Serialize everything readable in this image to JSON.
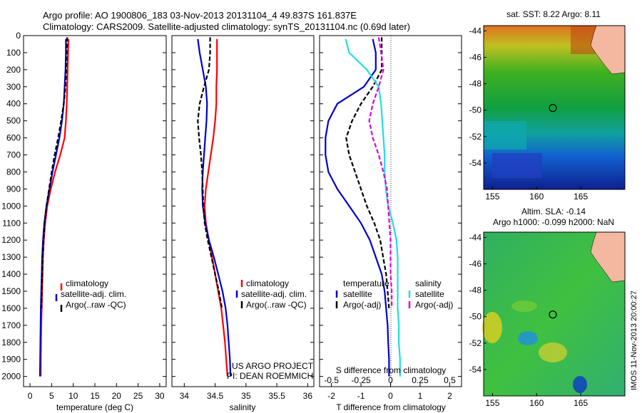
{
  "header": {
    "title_line1": "Argo profile: AO 1900806_183 03-Nov-2013 20131104_4 49.837S 161.837E",
    "title_line2": "Climatology: CARS2009. Satellite-adjusted climatology: synTS_20131104.nc (0.69d later)"
  },
  "colors": {
    "climatology": "#ff0000",
    "satellite": "#0000cc",
    "argo": "#000000",
    "salinity_satellite": "#22dddd",
    "salinity_argo": "#dd00dd"
  },
  "depth_axis": {
    "ticks": [
      "0",
      "100",
      "200",
      "300",
      "400",
      "500",
      "600",
      "700",
      "800",
      "900",
      "1000",
      "1100",
      "1200",
      "1300",
      "1400",
      "1500",
      "1600",
      "1700",
      "1800",
      "1900",
      "2000"
    ],
    "range": [
      0,
      2060
    ]
  },
  "chart_data": [
    {
      "type": "line",
      "id": "temperature",
      "xlabel": "temperature (deg C)",
      "xlim": [
        -1.5,
        31.5
      ],
      "xticks": [
        "0",
        "5",
        "10",
        "15",
        "20",
        "25",
        "30"
      ],
      "xtick_values": [
        0,
        5,
        10,
        15,
        20,
        25,
        30
      ],
      "legend": [
        "climatology",
        "satellite-adj. clim.",
        "Argo(..raw -QC)"
      ],
      "series": [
        {
          "name": "climatology",
          "color": "#ff0000",
          "dash": "",
          "x": [
            8.9,
            8.8,
            8.7,
            8.6,
            8.5,
            8.3,
            8.0,
            7.0,
            5.8,
            4.8,
            4.0,
            3.5,
            3.2,
            3.0,
            2.9,
            2.8,
            2.7,
            2.6,
            2.55,
            2.5,
            2.5
          ],
          "y": [
            20,
            100,
            200,
            300,
            400,
            500,
            600,
            700,
            800,
            900,
            1000,
            1100,
            1200,
            1300,
            1400,
            1500,
            1600,
            1700,
            1800,
            1900,
            2000
          ]
        },
        {
          "name": "satellite-adj. clim.",
          "color": "#0000cc",
          "dash": "",
          "x": [
            8.3,
            8.3,
            8.2,
            8.0,
            7.8,
            7.4,
            6.8,
            6.0,
            5.2,
            4.5,
            3.8,
            3.3,
            3.0,
            2.8,
            2.7,
            2.6,
            2.5,
            2.45,
            2.4,
            2.35,
            2.3
          ],
          "y": [
            20,
            100,
            200,
            300,
            400,
            500,
            600,
            700,
            800,
            900,
            1000,
            1100,
            1200,
            1300,
            1400,
            1500,
            1600,
            1700,
            1800,
            1900,
            2000
          ]
        },
        {
          "name": "Argo(..raw -QC)",
          "color": "#000000",
          "dash": "6,3",
          "x": [
            8.6,
            8.5,
            8.4,
            8.2,
            7.8,
            7.2,
            6.5,
            5.7,
            5.0,
            4.4,
            3.8,
            3.4,
            3.1,
            2.9,
            2.8,
            2.7,
            2.65
          ],
          "y": [
            10,
            100,
            200,
            300,
            400,
            500,
            600,
            700,
            800,
            900,
            1000,
            1100,
            1200,
            1300,
            1400,
            1500,
            1600
          ]
        }
      ]
    },
    {
      "type": "line",
      "id": "salinity",
      "xlabel": "salinity",
      "xlim": [
        33.8,
        36.1
      ],
      "xticks": [
        "34",
        "34.5",
        "35",
        "35.5",
        "36"
      ],
      "xtick_values": [
        34,
        34.5,
        35,
        35.5,
        36
      ],
      "legend": [
        "climatology",
        "satellite-adj. clim.",
        "Argo(..raw -QC)"
      ],
      "series": [
        {
          "name": "climatology",
          "color": "#ff0000",
          "dash": "",
          "x": [
            34.53,
            34.53,
            34.53,
            34.52,
            34.52,
            34.5,
            34.47,
            34.43,
            34.39,
            34.35,
            34.33,
            34.35,
            34.4,
            34.45,
            34.5,
            34.55,
            34.6,
            34.63,
            34.66,
            34.68,
            34.7
          ],
          "y": [
            20,
            100,
            200,
            300,
            400,
            500,
            600,
            700,
            800,
            900,
            1000,
            1100,
            1200,
            1300,
            1400,
            1500,
            1600,
            1700,
            1800,
            1900,
            2000
          ]
        },
        {
          "name": "satellite-adj. clim.",
          "color": "#0000cc",
          "dash": "",
          "x": [
            34.22,
            34.25,
            34.3,
            34.35,
            34.37,
            34.36,
            34.34,
            34.32,
            34.3,
            34.29,
            34.3,
            34.34,
            34.4,
            34.48,
            34.55,
            34.62,
            34.67,
            34.7,
            34.72,
            34.74,
            34.75
          ],
          "y": [
            20,
            100,
            200,
            300,
            400,
            500,
            600,
            700,
            800,
            900,
            1000,
            1100,
            1200,
            1300,
            1400,
            1500,
            1600,
            1700,
            1800,
            1900,
            2000
          ]
        },
        {
          "name": "Argo(..raw -QC)",
          "color": "#000000",
          "dash": "6,3",
          "x": [
            34.42,
            34.42,
            34.4,
            34.32,
            34.25,
            34.22,
            34.24,
            34.27,
            34.29,
            34.3,
            34.31,
            34.33,
            34.38,
            34.44,
            34.5,
            34.56,
            34.61
          ],
          "y": [
            10,
            100,
            200,
            300,
            400,
            500,
            600,
            700,
            800,
            900,
            1000,
            1100,
            1200,
            1300,
            1400,
            1500,
            1600
          ]
        }
      ],
      "annotations": [
        "US ARGO PROJECT",
        "PI: DEAN ROEMMICH"
      ]
    },
    {
      "type": "line",
      "id": "difference",
      "xlabel": "T difference from climatology",
      "xlim": [
        -2.4,
        2.4
      ],
      "xticks": [
        "-2",
        "-1",
        "0",
        "1",
        "2"
      ],
      "xtick_values": [
        -2,
        -1,
        0,
        1,
        2
      ],
      "secondary_label": "S difference from climatology",
      "secondary_ticks": [
        "-0.5",
        "-0.25",
        "0",
        "0.25",
        "0.5"
      ],
      "secondary_tick_values": [
        -0.5,
        -0.25,
        0,
        0.25,
        0.5
      ],
      "legend_temperature": {
        "title": "temperature",
        "items": [
          "satellite",
          "Argo(-adj)"
        ]
      },
      "legend_salinity": {
        "title": "salinity",
        "items": [
          "satellite",
          "Argo(-adj)"
        ]
      },
      "series": [
        {
          "name": "temperature satellite",
          "color": "#0000cc",
          "dash": "",
          "x": [
            -0.6,
            -0.5,
            -0.5,
            -0.9,
            -1.8,
            -2.1,
            -2.2,
            -2.2,
            -2.1,
            -1.8,
            -1.4,
            -1.0,
            -0.7,
            -0.5,
            -0.3,
            -0.2,
            -0.15,
            -0.1,
            -0.08,
            -0.05,
            -0.05
          ],
          "y": [
            20,
            100,
            200,
            300,
            400,
            500,
            600,
            700,
            800,
            900,
            1000,
            1100,
            1200,
            1300,
            1400,
            1500,
            1600,
            1700,
            1800,
            1900,
            2000
          ]
        },
        {
          "name": "temperature Argo(-adj)",
          "color": "#000000",
          "dash": "6,3",
          "x": [
            -0.3,
            -0.3,
            -0.3,
            -0.6,
            -1.0,
            -1.3,
            -1.5,
            -1.4,
            -1.2,
            -1.0,
            -0.8,
            -0.55,
            -0.35,
            -0.25,
            -0.15,
            -0.1,
            -0.05
          ],
          "y": [
            10,
            100,
            200,
            300,
            400,
            500,
            600,
            700,
            800,
            900,
            1000,
            1100,
            1200,
            1300,
            1400,
            1500,
            1600
          ]
        },
        {
          "name": "salinity satellite",
          "color": "#22dddd",
          "dash": "",
          "x": [
            -0.38,
            -0.35,
            -0.2,
            -0.1,
            -0.08,
            -0.07,
            -0.06,
            -0.05,
            -0.05,
            -0.04,
            -0.02,
            0.02,
            0.05,
            0.06,
            0.06,
            0.06,
            0.06,
            0.07,
            0.07,
            0.08,
            0.08
          ],
          "y": [
            20,
            100,
            200,
            300,
            400,
            500,
            600,
            700,
            800,
            900,
            1000,
            1100,
            1200,
            1300,
            1400,
            1500,
            1600,
            1700,
            1800,
            1900,
            2000
          ]
        },
        {
          "name": "salinity Argo(-adj)",
          "color": "#dd00dd",
          "dash": "6,3",
          "x": [
            -0.1,
            -0.08,
            -0.06,
            -0.1,
            -0.15,
            -0.18,
            -0.15,
            -0.1,
            -0.06,
            -0.03,
            -0.02,
            -0.01,
            0.0,
            0.0,
            0.0,
            0.01,
            0.01
          ],
          "y": [
            10,
            100,
            200,
            300,
            400,
            500,
            600,
            700,
            800,
            900,
            1000,
            1100,
            1200,
            1300,
            1400,
            1500,
            1600
          ]
        }
      ]
    },
    {
      "type": "heatmap",
      "id": "sst_map",
      "title": "sat. SST: 8.22 Argo: 8.11",
      "xticks": [
        "155",
        "160",
        "165"
      ],
      "xtick_values": [
        155,
        160,
        165
      ],
      "yticks": [
        "-44",
        "-46",
        "-48",
        "-50",
        "-52",
        "-54"
      ],
      "ytick_values": [
        -44,
        -46,
        -48,
        -50,
        -52,
        -54
      ],
      "xlim": [
        154,
        170
      ],
      "ylim": [
        -56,
        -43.6
      ],
      "argo_position": [
        161.837,
        -49.837
      ]
    },
    {
      "type": "heatmap",
      "id": "sla_map",
      "title_line1": "Altim. SLA: -0.14",
      "title_line2": "Argo h1000: -0.099 h2000: NaN",
      "xticks": [
        "155",
        "160",
        "165"
      ],
      "xtick_values": [
        155,
        160,
        165
      ],
      "yticks": [
        "-44",
        "-46",
        "-48",
        "-50",
        "-52",
        "-54"
      ],
      "ytick_values": [
        -44,
        -46,
        -48,
        -50,
        -52,
        -54
      ],
      "xlim": [
        154,
        170
      ],
      "ylim": [
        -56,
        -43.6
      ],
      "argo_position": [
        161.837,
        -49.837
      ]
    }
  ],
  "footer": {
    "stamp": "IMOS 11-Nov-2013 20:00:27"
  }
}
